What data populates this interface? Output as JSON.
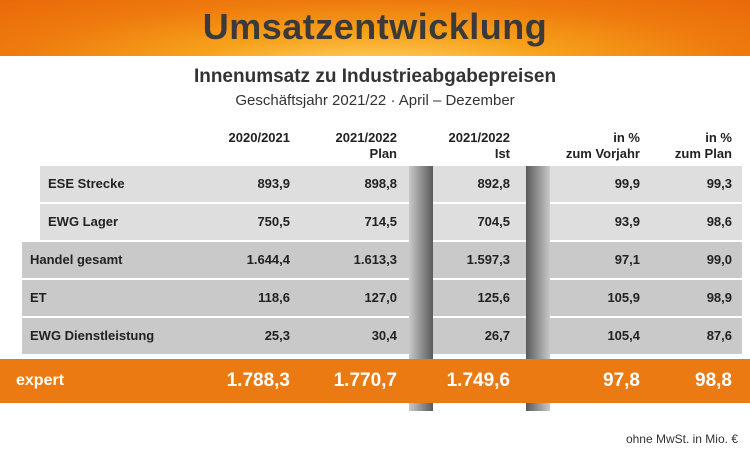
{
  "title": "Umsatzentwicklung",
  "subtitle": "Innenumsatz zu Industrieabgabepreisen",
  "period": "Geschäftsjahr 2021/22 · April – Dezember",
  "columns": [
    {
      "line1": "2020/2021",
      "line2": ""
    },
    {
      "line1": "2021/2022",
      "line2": "Plan"
    },
    {
      "line1": "2021/2022",
      "line2": "Ist"
    },
    {
      "line1": "in %",
      "line2": "zum Vorjahr"
    },
    {
      "line1": "in %",
      "line2": "zum Plan"
    }
  ],
  "rows": [
    {
      "label": "ESE Strecke",
      "values": [
        "893,9",
        "898,8",
        "892,8",
        "99,9",
        "99,3"
      ]
    },
    {
      "label": "EWG Lager",
      "values": [
        "750,5",
        "714,5",
        "704,5",
        "93,9",
        "98,6"
      ]
    },
    {
      "label": "Handel gesamt",
      "values": [
        "1.644,4",
        "1.613,3",
        "1.597,3",
        "97,1",
        "99,0"
      ]
    },
    {
      "label": "ET",
      "values": [
        "118,6",
        "127,0",
        "125,6",
        "105,9",
        "98,9"
      ]
    },
    {
      "label": "EWG Dienstleistung",
      "values": [
        "25,3",
        "30,4",
        "26,7",
        "105,4",
        "87,6"
      ]
    }
  ],
  "total": {
    "label": "expert",
    "values": [
      "1.788,3",
      "1.770,7",
      "1.749,6",
      "97,8",
      "98,8"
    ]
  },
  "footnote": "ohne MwSt. in Mio. €",
  "colors": {
    "accent": "#ec7a12",
    "row_light": "#dedede",
    "row_mid": "#c9c9c9",
    "title_text": "#3a3a3a"
  }
}
